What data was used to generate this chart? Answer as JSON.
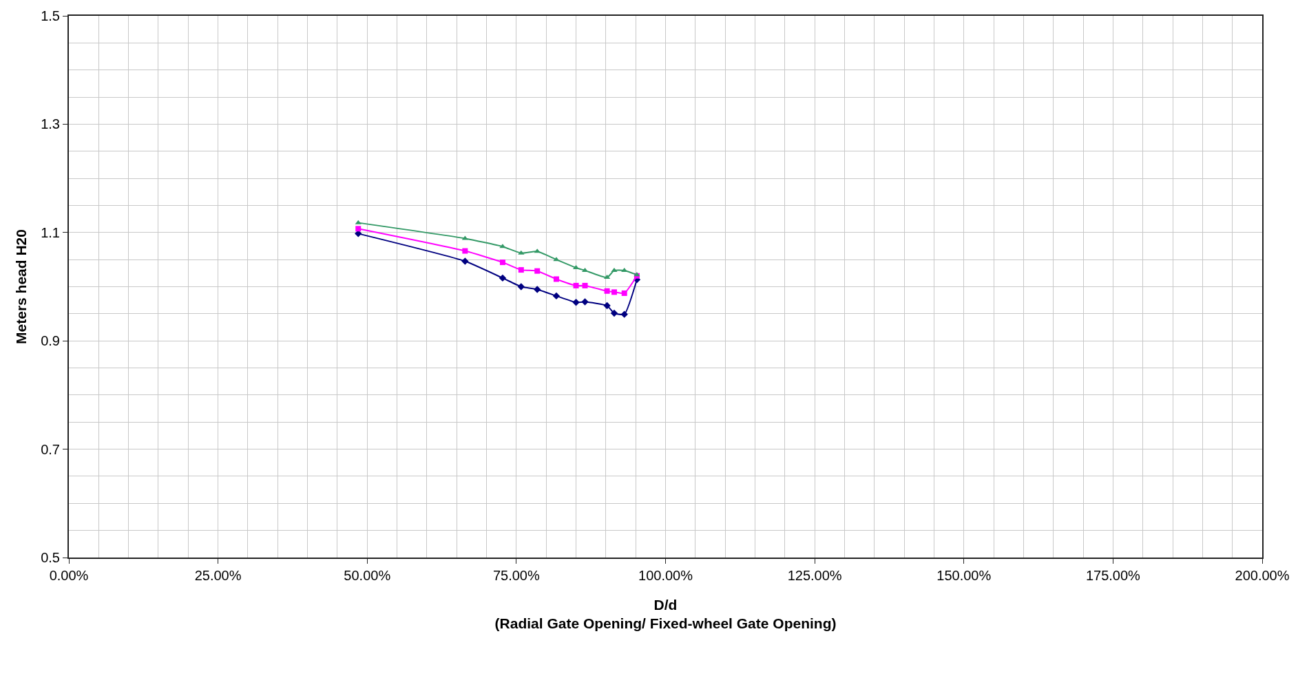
{
  "chart_data": {
    "type": "line",
    "xlabel": "D/d\n(Radial Gate Opening/ Fixed-wheel Gate Opening)",
    "ylabel": "Meters head H20",
    "x": [
      48.5,
      66.4,
      72.7,
      75.8,
      78.5,
      81.7,
      85.0,
      86.5,
      90.2,
      91.4,
      93.1,
      95.2
    ],
    "series": [
      {
        "color": "#000080",
        "marker": "diamond",
        "values": [
          1.098,
          1.047,
          1.016,
          1.0,
          0.995,
          0.983,
          0.971,
          0.972,
          0.965,
          0.951,
          0.949,
          1.013
        ]
      },
      {
        "color": "#ff00ff",
        "marker": "square",
        "values": [
          1.107,
          1.066,
          1.045,
          1.031,
          1.029,
          1.014,
          1.002,
          1.002,
          0.992,
          0.99,
          0.988,
          1.02
        ]
      },
      {
        "color": "#339966",
        "marker": "triangle",
        "values": [
          1.118,
          1.089,
          1.074,
          1.062,
          1.065,
          1.05,
          1.035,
          1.03,
          1.017,
          1.03,
          1.03,
          1.022
        ]
      }
    ],
    "xlim": [
      0,
      200
    ],
    "xticks": [
      {
        "value": 0,
        "label": "0.00%"
      },
      {
        "value": 25,
        "label": "25.00%"
      },
      {
        "value": 50,
        "label": "50.00%"
      },
      {
        "value": 75,
        "label": "75.00%"
      },
      {
        "value": 100,
        "label": "100.00%"
      },
      {
        "value": 125,
        "label": "125.00%"
      },
      {
        "value": 150,
        "label": "150.00%"
      },
      {
        "value": 175,
        "label": "175.00%"
      },
      {
        "value": 200,
        "label": "200.00%"
      }
    ],
    "ylim": [
      0.5,
      1.5
    ],
    "yticks": [
      0.5,
      0.7,
      0.9,
      1.1,
      1.3,
      1.5
    ],
    "grid": true,
    "legend": false
  }
}
